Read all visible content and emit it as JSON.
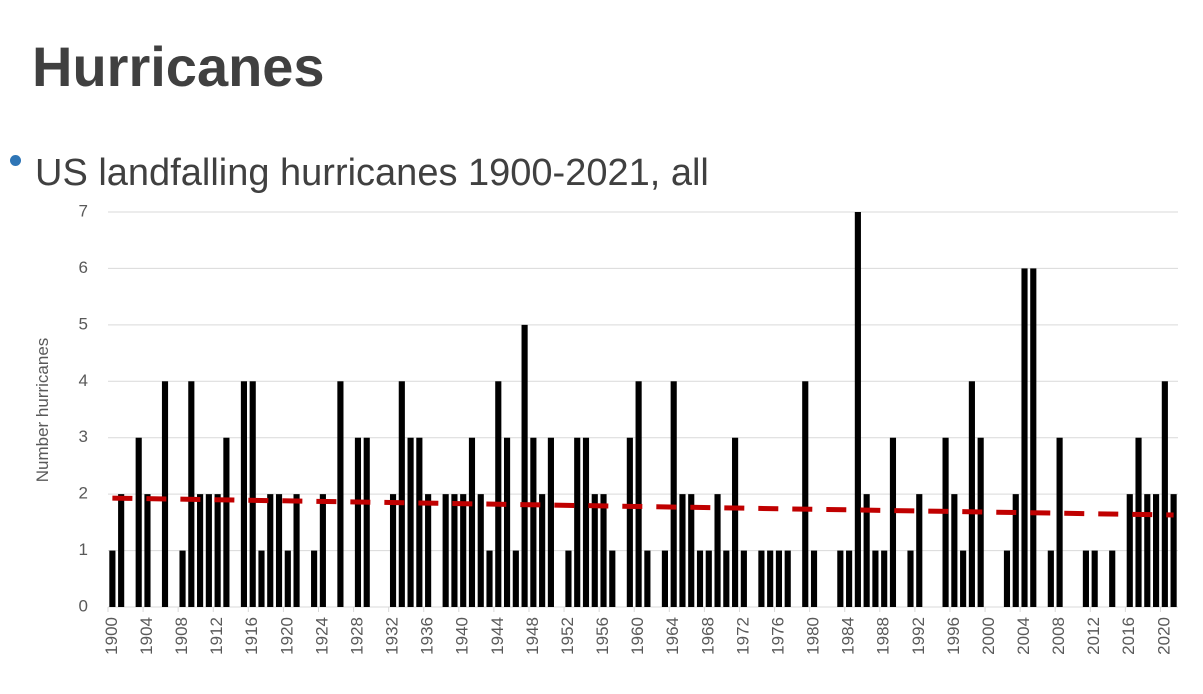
{
  "heading": "Hurricanes",
  "chart_data": {
    "type": "bar",
    "title": "US landfalling hurricanes 1900-2021, all",
    "ylabel": "Number hurricanes",
    "color": "#000000",
    "grid": true,
    "x": [
      1900,
      1901,
      1902,
      1903,
      1904,
      1905,
      1906,
      1907,
      1908,
      1909,
      1910,
      1911,
      1912,
      1913,
      1914,
      1915,
      1916,
      1917,
      1918,
      1919,
      1920,
      1921,
      1922,
      1923,
      1924,
      1925,
      1926,
      1927,
      1928,
      1929,
      1930,
      1931,
      1932,
      1933,
      1934,
      1935,
      1936,
      1937,
      1938,
      1939,
      1940,
      1941,
      1942,
      1943,
      1944,
      1945,
      1946,
      1947,
      1948,
      1949,
      1950,
      1951,
      1952,
      1953,
      1954,
      1955,
      1956,
      1957,
      1958,
      1959,
      1960,
      1961,
      1962,
      1963,
      1964,
      1965,
      1966,
      1967,
      1968,
      1969,
      1970,
      1971,
      1972,
      1973,
      1974,
      1975,
      1976,
      1977,
      1978,
      1979,
      1980,
      1981,
      1982,
      1983,
      1984,
      1985,
      1986,
      1987,
      1988,
      1989,
      1990,
      1991,
      1992,
      1993,
      1994,
      1995,
      1996,
      1997,
      1998,
      1999,
      2000,
      2001,
      2002,
      2003,
      2004,
      2005,
      2006,
      2007,
      2008,
      2009,
      2010,
      2011,
      2012,
      2013,
      2014,
      2015,
      2016,
      2017,
      2018,
      2019,
      2020,
      2021
    ],
    "values": [
      1,
      2,
      0,
      3,
      2,
      0,
      4,
      0,
      1,
      4,
      2,
      2,
      2,
      3,
      0,
      4,
      4,
      1,
      2,
      2,
      1,
      2,
      0,
      1,
      2,
      0,
      4,
      0,
      3,
      3,
      0,
      0,
      2,
      4,
      3,
      3,
      2,
      0,
      2,
      2,
      2,
      3,
      2,
      1,
      4,
      3,
      1,
      5,
      3,
      2,
      3,
      0,
      1,
      3,
      3,
      2,
      2,
      1,
      0,
      3,
      4,
      1,
      0,
      1,
      4,
      2,
      2,
      1,
      1,
      2,
      1,
      3,
      1,
      0,
      1,
      1,
      1,
      1,
      0,
      4,
      1,
      0,
      0,
      1,
      1,
      7,
      2,
      1,
      1,
      3,
      0,
      1,
      2,
      0,
      0,
      3,
      2,
      1,
      4,
      3,
      0,
      0,
      1,
      2,
      6,
      6,
      0,
      1,
      3,
      0,
      0,
      1,
      1,
      0,
      1,
      0,
      2,
      3,
      2,
      2,
      4,
      2
    ],
    "trendline": {
      "x": [
        1900,
        2021
      ],
      "values": [
        1.93,
        1.63
      ],
      "color": "#c00000"
    },
    "xlim": [
      1899.5,
      2021.5
    ],
    "xticks": [
      1900,
      1904,
      1908,
      1912,
      1916,
      1920,
      1924,
      1928,
      1932,
      1936,
      1940,
      1944,
      1948,
      1952,
      1956,
      1960,
      1964,
      1968,
      1972,
      1976,
      1980,
      1984,
      1988,
      1992,
      1996,
      2000,
      2004,
      2008,
      2012,
      2016,
      2020
    ],
    "ylim": [
      0,
      7
    ],
    "yticks": [
      0,
      1,
      2,
      3,
      4,
      5,
      6,
      7
    ]
  }
}
